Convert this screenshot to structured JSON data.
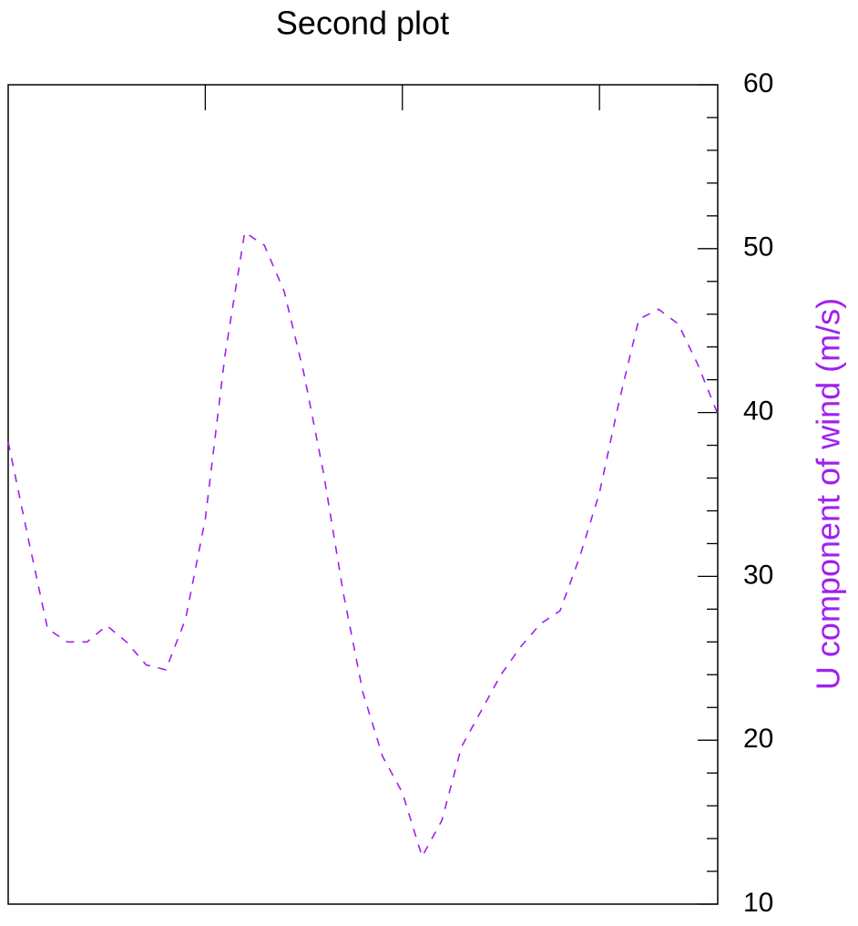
{
  "chart_data": {
    "type": "line",
    "title": "Second plot",
    "y_label": "U component of wind (m/s)",
    "x": [
      0,
      1,
      2,
      3,
      4,
      5,
      6,
      7,
      8,
      9,
      10,
      11,
      12,
      13,
      14,
      15,
      16,
      17,
      18,
      19,
      20,
      21,
      22,
      23,
      24,
      25,
      26,
      27,
      28,
      29,
      30,
      31,
      32,
      33,
      34,
      35,
      36
    ],
    "series": [
      {
        "name": "U component of wind",
        "color": "#a020f0",
        "dashed": true,
        "axis": "y2",
        "values": [
          38.2,
          32.4,
          26.8,
          26.0,
          26.0,
          27.0,
          26.0,
          24.6,
          24.3,
          27.4,
          33.5,
          43.5,
          51.0,
          50.2,
          47.4,
          42.4,
          36.3,
          29.0,
          22.9,
          19.0,
          16.8,
          12.9,
          15.1,
          19.6,
          21.8,
          24.0,
          25.7,
          27.1,
          27.9,
          31.2,
          35.1,
          40.7,
          45.7,
          46.3,
          45.4,
          42.9,
          39.9
        ]
      }
    ],
    "xlim": [
      0,
      36
    ],
    "xticks": [
      10,
      20,
      30
    ],
    "y2lim": [
      10,
      60
    ],
    "y2ticks": [
      10,
      20,
      30,
      40,
      50,
      60
    ],
    "y2minor_ticks": [
      12,
      14,
      16,
      18,
      22,
      24,
      26,
      28,
      32,
      34,
      36,
      38,
      42,
      44,
      46,
      48,
      52,
      54,
      56,
      58
    ]
  }
}
